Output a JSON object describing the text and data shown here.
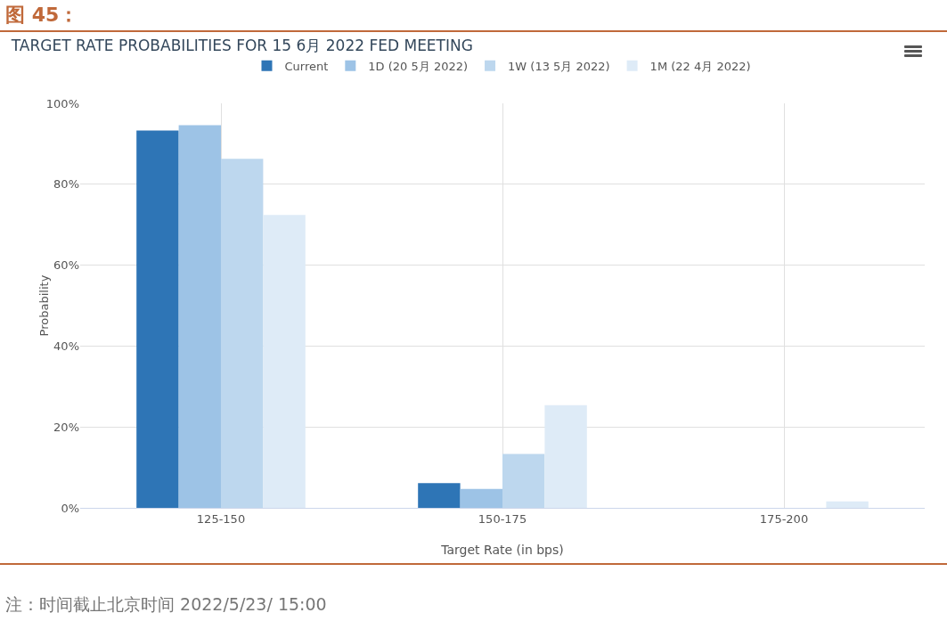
{
  "chart_data": {
    "type": "bar",
    "title": "图 45：",
    "subtitle": "TARGET RATE PROBABILITIES FOR 15 6月 2022 FED MEETING",
    "xlabel": "Target Rate (in bps)",
    "ylabel": "Probability",
    "categories": [
      "125-150",
      "150-175",
      "175-200"
    ],
    "series": [
      {
        "name": "Current",
        "color": "#2e75b6",
        "values": [
          93.3,
          6.1,
          0
        ]
      },
      {
        "name": "1D (20 5月 2022)",
        "color": "#9dc3e6",
        "values": [
          94.6,
          4.7,
          0
        ]
      },
      {
        "name": "1W (13 5月 2022)",
        "color": "#bdd7ee",
        "values": [
          86.3,
          13.3,
          0
        ]
      },
      {
        "name": "1M (22 4月 2022)",
        "color": "#deebf7",
        "values": [
          72.4,
          25.4,
          1.6
        ]
      }
    ],
    "ylim": [
      0,
      100
    ],
    "yticks": [
      {
        "value": 0,
        "label": "0%"
      },
      {
        "value": 20,
        "label": "20%"
      },
      {
        "value": 40,
        "label": "40%"
      },
      {
        "value": 60,
        "label": "60%"
      },
      {
        "value": 80,
        "label": "80%"
      },
      {
        "value": 100,
        "label": "100%"
      }
    ],
    "grid": true,
    "legend": "top",
    "annotations": [
      "注：时间截止北京时间 2022/5/23/ 15:00"
    ]
  }
}
